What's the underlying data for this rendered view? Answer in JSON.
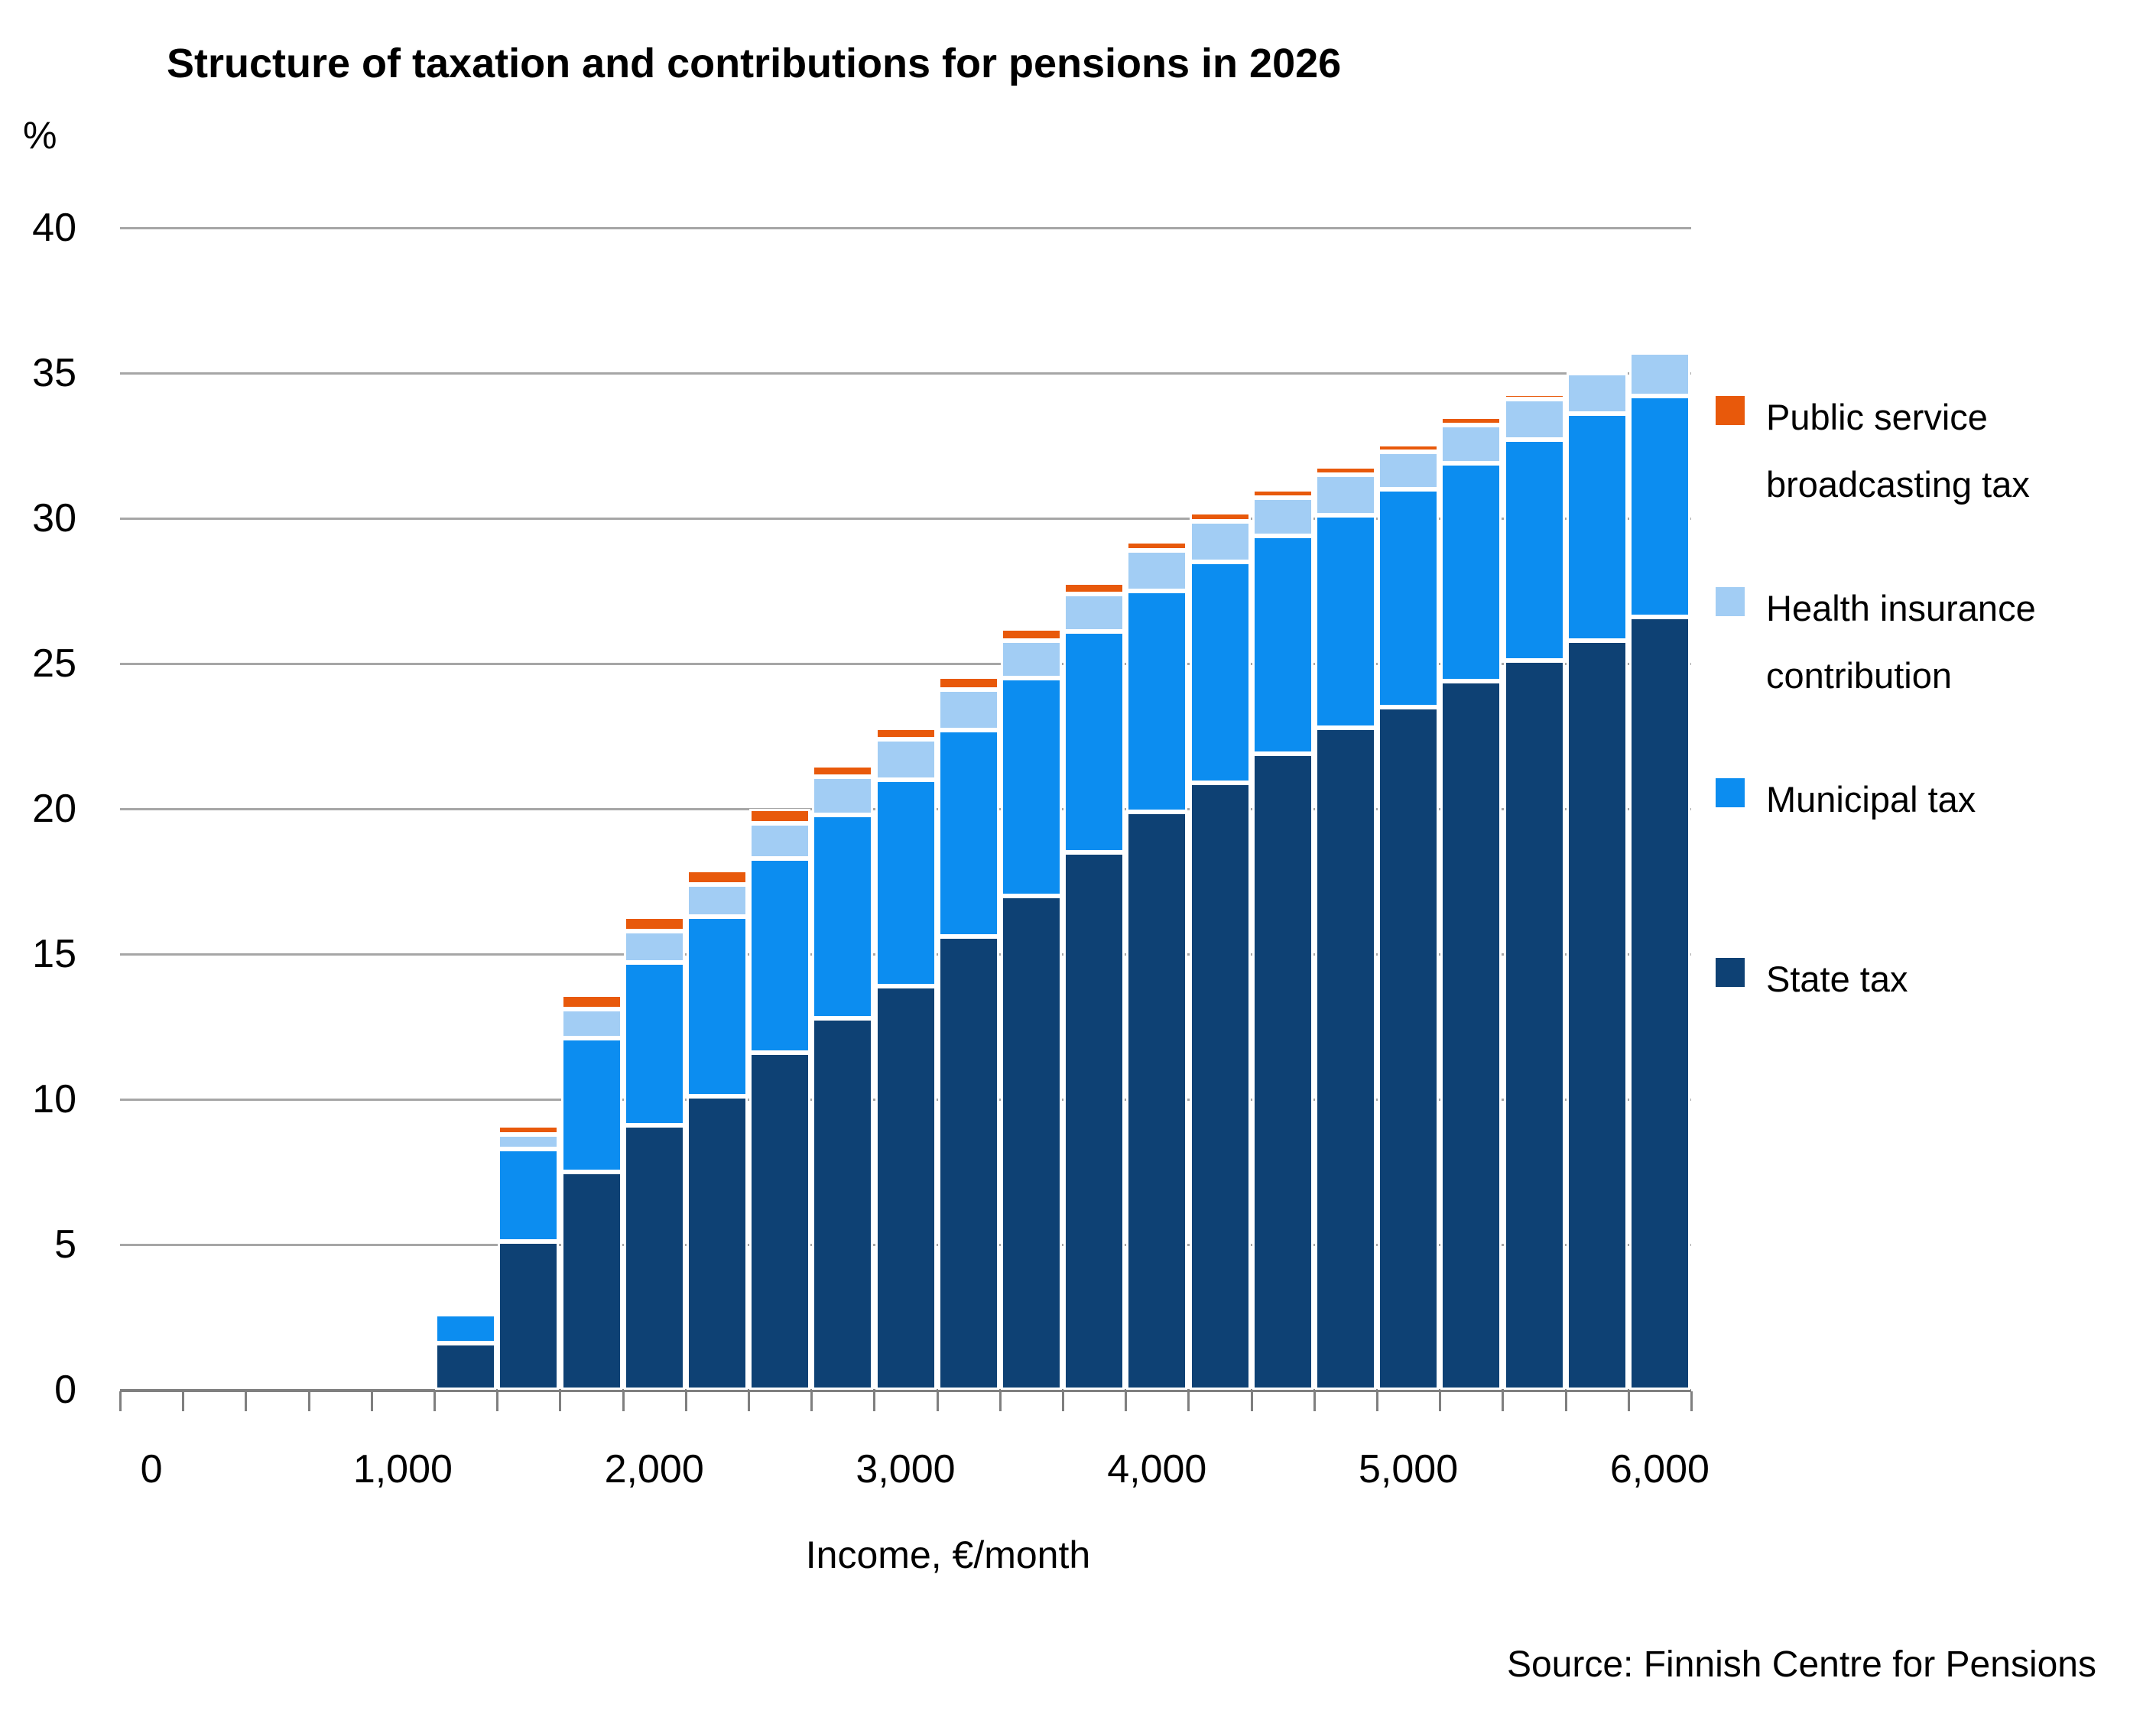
{
  "title": "Structure of taxation and contributions for pensions in 2026",
  "y_axis": {
    "unit_label": "%",
    "ticks": [
      0,
      5,
      10,
      15,
      20,
      25,
      30,
      35,
      40
    ]
  },
  "x_axis": {
    "label": "Income, €/month",
    "tick_labels": [
      "0",
      "1,000",
      "2,000",
      "3,000",
      "4,000",
      "5,000",
      "6,000"
    ],
    "tick_values": [
      0,
      1000,
      2000,
      3000,
      4000,
      5000,
      6000
    ]
  },
  "source": "Source: Finnish Centre for Pensions",
  "legend": [
    {
      "name": "broadcasting-tax",
      "lines": [
        "Public service",
        "broadcasting tax"
      ],
      "color": "#e8590b"
    },
    {
      "name": "health-insurance",
      "lines": [
        "Health insurance",
        "contribution"
      ],
      "color": "#a2cdf4"
    },
    {
      "name": "municipal-tax",
      "lines": [
        "Municipal tax"
      ],
      "color": "#0c8df0"
    },
    {
      "name": "state-tax",
      "lines": [
        "State tax"
      ],
      "color": "#0e4174"
    }
  ],
  "colors": {
    "state_tax": "#0e4174",
    "municipal_tax": "#0c8df0",
    "health_insurance": "#a2cdf4",
    "broadcasting_tax": "#e8590b",
    "gridline": "#a6a6a6",
    "axis": "#7f7f7f",
    "text": "#000000"
  },
  "chart_data": {
    "type": "bar",
    "stacked": true,
    "title": "Structure of taxation and contributions for pensions in 2026",
    "xlabel": "Income, €/month",
    "ylabel": "%",
    "ylim": [
      0,
      40
    ],
    "grid": "horizontal, every 5",
    "legend_position": "right",
    "categories": [
      1250,
      1500,
      1750,
      2000,
      2250,
      2500,
      2750,
      3000,
      3250,
      3500,
      3750,
      4000,
      4250,
      4500,
      4750,
      5000,
      5250,
      5500,
      5750,
      6000
    ],
    "category_step": 250,
    "axis_range_eur": [
      -125,
      6125
    ],
    "series": [
      {
        "name": "State tax",
        "color": "#0e4174",
        "values": [
          1.6,
          5.1,
          7.5,
          9.1,
          10.1,
          11.6,
          12.8,
          13.9,
          15.6,
          17.0,
          18.5,
          19.9,
          20.9,
          21.9,
          22.8,
          23.5,
          24.4,
          25.1,
          25.8,
          26.6
        ]
      },
      {
        "name": "Municipal tax",
        "color": "#0c8df0",
        "values": [
          1.0,
          3.2,
          4.6,
          5.6,
          6.2,
          6.7,
          7.0,
          7.1,
          7.1,
          7.5,
          7.6,
          7.6,
          7.6,
          7.5,
          7.3,
          7.5,
          7.5,
          7.6,
          7.8,
          7.6
        ]
      },
      {
        "name": "Health insurance contribution",
        "color": "#a2cdf4",
        "values": [
          0.1,
          0.5,
          1.0,
          1.1,
          1.1,
          1.2,
          1.3,
          1.4,
          1.4,
          1.3,
          1.3,
          1.4,
          1.4,
          1.3,
          1.4,
          1.3,
          1.3,
          1.4,
          1.4,
          1.5
        ]
      },
      {
        "name": "Public service broadcasting tax",
        "color": "#e8590b",
        "values": [
          0.0,
          0.3,
          0.5,
          0.5,
          0.5,
          0.5,
          0.4,
          0.4,
          0.45,
          0.4,
          0.4,
          0.3,
          0.3,
          0.3,
          0.3,
          0.25,
          0.3,
          0.2,
          0.1,
          0.15
        ]
      }
    ],
    "totals": [
      2.7,
      9.1,
      13.6,
      16.3,
      17.9,
      20.0,
      21.5,
      22.8,
      24.55,
      26.2,
      27.8,
      29.2,
      30.2,
      31.0,
      31.8,
      32.55,
      33.5,
      34.3,
      35.1,
      35.85
    ]
  }
}
